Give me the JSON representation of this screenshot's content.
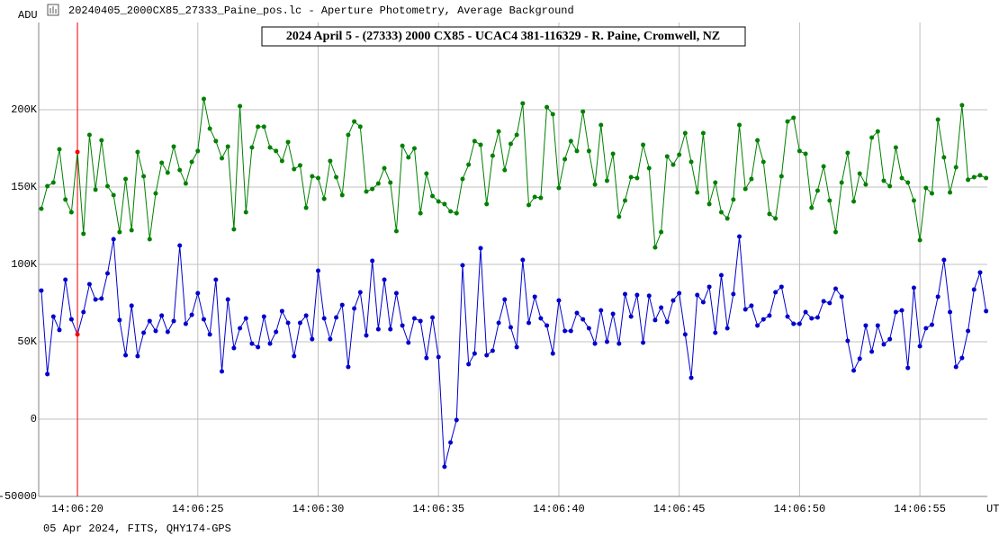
{
  "window_title": "20240405_2000CX85_27333_Paine_pos.lc - Aperture Photometry, Average Background",
  "footer": "05 Apr 2024, FITS, QHY174-GPS",
  "chart_data": {
    "type": "line",
    "title": "2024 April 5 - (27333) 2000 CX85 - UCAC4 381-116329 - R. Paine, Cromwell, NZ",
    "y_label": "ADU",
    "x_label": "UT",
    "x": [
      18.5,
      18.75,
      19,
      19.25,
      19.5,
      19.75,
      20,
      20.25,
      20.5,
      20.75,
      21,
      21.25,
      21.5,
      21.75,
      22,
      22.25,
      22.5,
      22.75,
      23,
      23.25,
      23.5,
      23.75,
      24,
      24.25,
      24.5,
      24.75,
      25,
      25.25,
      25.5,
      25.75,
      26,
      26.25,
      26.5,
      26.75,
      27,
      27.25,
      27.5,
      27.75,
      28,
      28.25,
      28.5,
      28.75,
      29,
      29.25,
      29.5,
      29.75,
      30,
      30.25,
      30.5,
      30.75,
      31,
      31.25,
      31.5,
      31.75,
      32,
      32.25,
      32.5,
      32.75,
      33,
      33.25,
      33.5,
      33.75,
      34,
      34.25,
      34.5,
      34.75,
      35,
      35.25,
      35.5,
      35.75,
      36,
      36.25,
      36.5,
      36.75,
      37,
      37.25,
      37.5,
      37.75,
      38,
      38.25,
      38.5,
      38.75,
      39,
      39.25,
      39.5,
      39.75,
      40,
      40.25,
      40.5,
      40.75,
      41,
      41.25,
      41.5,
      41.75,
      42,
      42.25,
      42.5,
      42.75,
      43,
      43.25,
      43.5,
      43.75,
      44,
      44.25,
      44.5,
      44.75,
      45,
      45.25,
      45.5,
      45.75,
      46,
      46.25,
      46.5,
      46.75,
      47,
      47.25,
      47.5,
      47.75,
      48,
      48.25,
      48.5,
      48.75,
      49,
      49.25,
      49.5,
      49.75,
      50,
      50.25,
      50.5,
      50.75,
      51,
      51.25,
      51.5,
      51.75,
      52,
      52.25,
      52.5,
      52.75,
      53,
      53.25,
      53.5,
      53.75,
      54,
      54.25,
      54.5,
      54.75,
      55,
      55.25,
      55.5,
      55.75,
      56,
      56.25,
      56.5,
      56.75,
      57,
      57.25,
      57.5,
      57.75
    ],
    "series": [
      {
        "color": "#008000",
        "values": [
          136000,
          150600,
          152900,
          174400,
          141900,
          133700,
          172700,
          119800,
          183700,
          148300,
          180200,
          150600,
          144800,
          120900,
          155200,
          122100,
          172700,
          157000,
          116300,
          145900,
          165700,
          159300,
          176200,
          161000,
          152300,
          166300,
          173300,
          207000,
          187800,
          179700,
          168600,
          176200,
          122700,
          202300,
          133700,
          175600,
          189000,
          189000,
          175600,
          173300,
          166900,
          179100,
          161600,
          164000,
          136600,
          157000,
          155800,
          142400,
          166900,
          156400,
          144800,
          183700,
          192400,
          189000,
          147100,
          148800,
          152300,
          162200,
          152900,
          121500,
          176700,
          169200,
          175000,
          133100,
          158700,
          144200,
          140700,
          139000,
          134300,
          133100,
          155200,
          164500,
          179700,
          177300,
          139000,
          170300,
          186000,
          161000,
          177900,
          183700,
          204100,
          138400,
          143600,
          143000,
          201700,
          197100,
          149400,
          168000,
          179700,
          173300,
          198800,
          173300,
          151700,
          190100,
          154100,
          171500,
          130800,
          141300,
          156400,
          155800,
          177300,
          162200,
          111000,
          120900,
          169800,
          164500,
          170900,
          184900,
          166300,
          146500,
          184900,
          139000,
          152900,
          133700,
          129700,
          141900,
          190100,
          148800,
          155200,
          180200,
          166300,
          132600,
          129700,
          157000,
          192400,
          194800,
          173300,
          171500,
          136600,
          147700,
          163400,
          141300,
          120900,
          152900,
          172100,
          140700,
          158700,
          151700,
          182000,
          186000,
          154100,
          150600,
          175600,
          155800,
          152900,
          141300,
          115700,
          149400,
          145900,
          193600,
          169200,
          146500,
          162800,
          202900,
          154700,
          156400,
          157600,
          155800
        ]
      },
      {
        "color": "#0000cc",
        "values": [
          83100,
          29100,
          66300,
          57600,
          90100,
          64500,
          54700,
          69200,
          87200,
          77300,
          77900,
          94200,
          116300,
          64000,
          41300,
          73300,
          40700,
          55800,
          63400,
          57000,
          66900,
          56400,
          63400,
          112200,
          61600,
          67400,
          81400,
          64500,
          54700,
          90100,
          30800,
          77300,
          45900,
          58700,
          65100,
          48800,
          46500,
          66300,
          48800,
          56400,
          69800,
          62200,
          40700,
          62200,
          66900,
          51700,
          95900,
          65100,
          51700,
          65700,
          73800,
          33700,
          71500,
          82000,
          54100,
          102300,
          58100,
          90100,
          58100,
          81400,
          60500,
          49400,
          65100,
          63400,
          39500,
          65700,
          40100,
          -30800,
          -15100,
          -600,
          99400,
          35500,
          42400,
          110500,
          41300,
          44200,
          62200,
          77300,
          59300,
          46500,
          102900,
          62200,
          79100,
          65100,
          60500,
          42400,
          76700,
          57000,
          57000,
          68600,
          64500,
          58700,
          48800,
          70300,
          50000,
          68000,
          48800,
          80800,
          66300,
          80200,
          49400,
          79700,
          64000,
          72100,
          62800,
          76700,
          81400,
          54700,
          26700,
          80200,
          75600,
          85500,
          55800,
          93000,
          58700,
          80800,
          118000,
          70900,
          73300,
          60500,
          64500,
          66900,
          82000,
          85500,
          66300,
          61600,
          61600,
          69200,
          65100,
          65700,
          76200,
          75000,
          84300,
          79100,
          50600,
          31400,
          39000,
          60500,
          43600,
          60500,
          48300,
          51700,
          69200,
          70300,
          33100,
          84900,
          47100,
          58700,
          61000,
          79100,
          102900,
          69200,
          33700,
          39500,
          57000,
          83700,
          94800,
          69800
        ]
      }
    ],
    "cursor": {
      "x": 20,
      "color": "#ff0000"
    },
    "xlim": [
      18.39,
      57.8
    ],
    "xticks": [
      {
        "value": 20,
        "label": "14:06:20"
      },
      {
        "value": 25,
        "label": "14:06:25"
      },
      {
        "value": 30,
        "label": "14:06:30"
      },
      {
        "value": 35,
        "label": "14:06:35"
      },
      {
        "value": 40,
        "label": "14:06:40"
      },
      {
        "value": 45,
        "label": "14:06:45"
      },
      {
        "value": 50,
        "label": "14:06:50"
      },
      {
        "value": 55,
        "label": "14:06:55"
      }
    ],
    "ylim": [
      -50000,
      256400
    ],
    "yticks": [
      -50000,
      0,
      {
        "value": 50000,
        "label": "50K"
      },
      {
        "value": 100000,
        "label": "100K"
      },
      {
        "value": 150000,
        "label": "150K"
      },
      {
        "value": 200000,
        "label": "200K"
      }
    ],
    "grid": true
  }
}
